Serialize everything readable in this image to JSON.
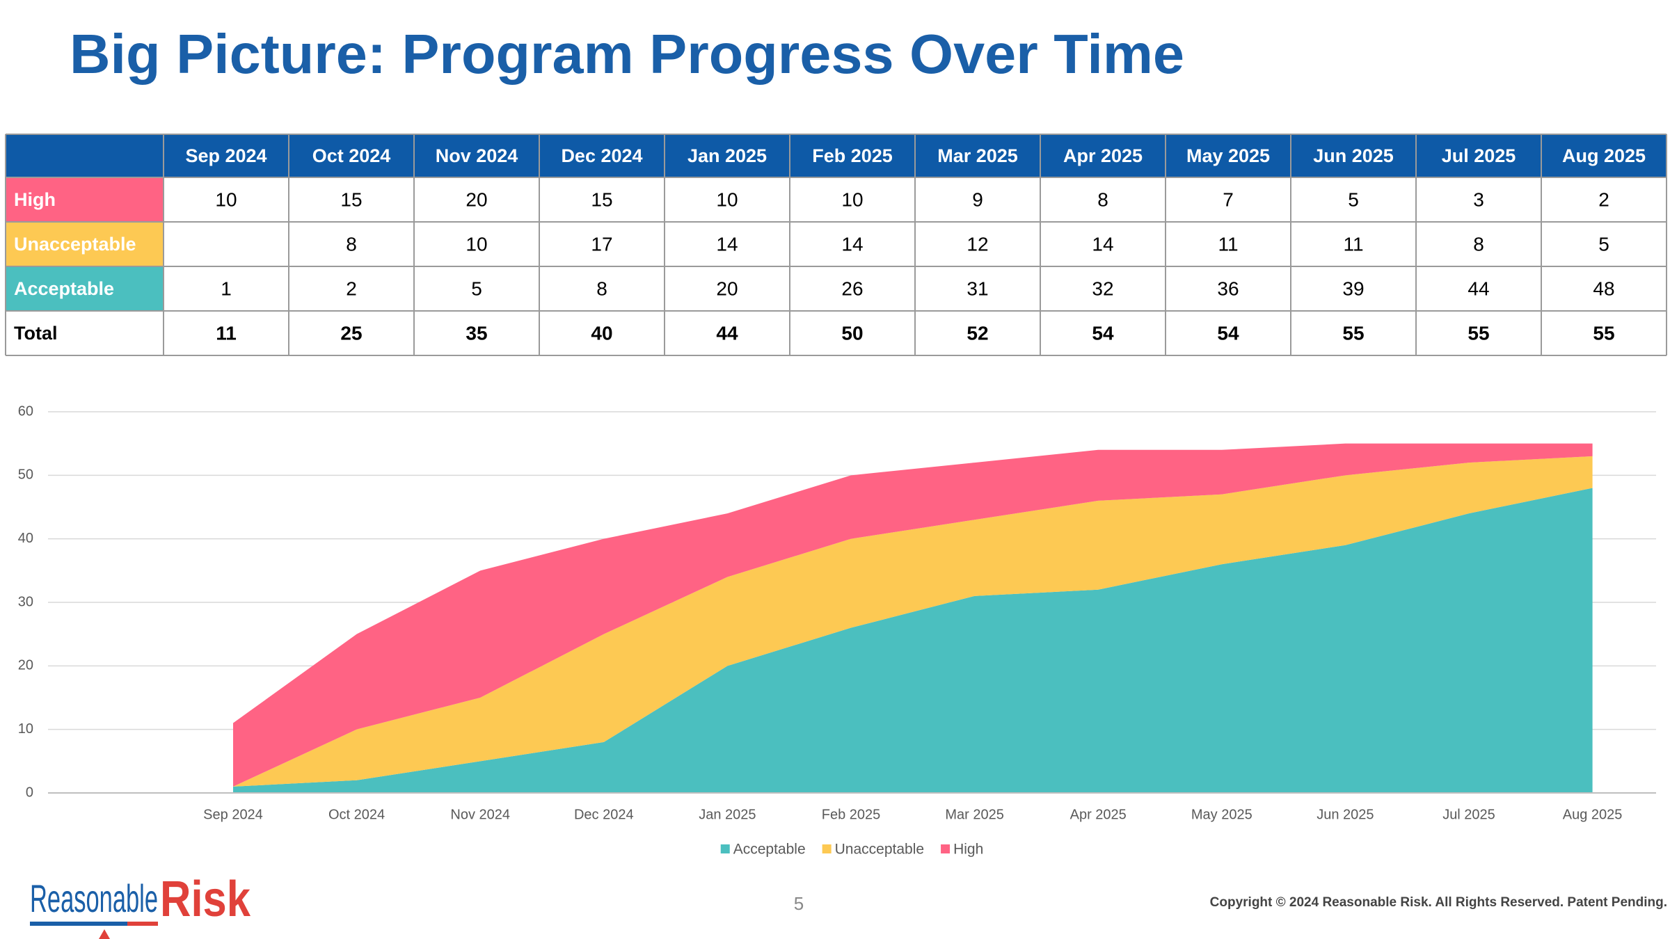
{
  "title": "Big Picture: Program Progress Over Time",
  "table": {
    "header": [
      "Sep 2024",
      "Oct 2024",
      "Nov 2024",
      "Dec 2024",
      "Jan 2025",
      "Feb 2025",
      "Mar 2025",
      "Apr 2025",
      "May 2025",
      "Jun 2025",
      "Jul 2025",
      "Aug 2025"
    ],
    "rows": [
      {
        "label": "High",
        "color": "#ff6384",
        "values": [
          10,
          15,
          20,
          15,
          10,
          10,
          9,
          8,
          7,
          5,
          3,
          2
        ]
      },
      {
        "label": "Unacceptable",
        "color": "#fdc953",
        "values": [
          null,
          8,
          10,
          17,
          14,
          14,
          12,
          14,
          11,
          11,
          8,
          5
        ]
      },
      {
        "label": "Acceptable",
        "color": "#4bbfbf",
        "values": [
          1,
          2,
          5,
          8,
          20,
          26,
          31,
          32,
          36,
          39,
          44,
          48
        ]
      },
      {
        "label": "Total",
        "values": [
          11,
          25,
          35,
          40,
          44,
          50,
          52,
          54,
          54,
          55,
          55,
          55
        ]
      }
    ]
  },
  "chart_data": {
    "type": "area",
    "stacked": true,
    "categories": [
      "Sep 2024",
      "Oct 2024",
      "Nov 2024",
      "Dec 2024",
      "Jan 2025",
      "Feb 2025",
      "Mar 2025",
      "Apr 2025",
      "May 2025",
      "Jun 2025",
      "Jul 2025",
      "Aug 2025"
    ],
    "series": [
      {
        "name": "Acceptable",
        "color": "#4bbfbf",
        "values": [
          1,
          2,
          5,
          8,
          20,
          26,
          31,
          32,
          36,
          39,
          44,
          48
        ]
      },
      {
        "name": "Unacceptable",
        "color": "#fdc953",
        "values": [
          0,
          8,
          10,
          17,
          14,
          14,
          12,
          14,
          11,
          11,
          8,
          5
        ]
      },
      {
        "name": "High",
        "color": "#ff6384",
        "values": [
          10,
          15,
          20,
          15,
          10,
          10,
          9,
          8,
          7,
          5,
          3,
          2
        ]
      }
    ],
    "ylim": [
      0,
      60
    ],
    "yticks": [
      0,
      10,
      20,
      30,
      40,
      50,
      60
    ],
    "grid": true,
    "legend": "bottom"
  },
  "footer": {
    "logo_left": "Reasonable",
    "logo_right": "Risk",
    "page": "5",
    "copyright": "Copyright © 2024 Reasonable Risk. All Rights Reserved. Patent Pending."
  }
}
